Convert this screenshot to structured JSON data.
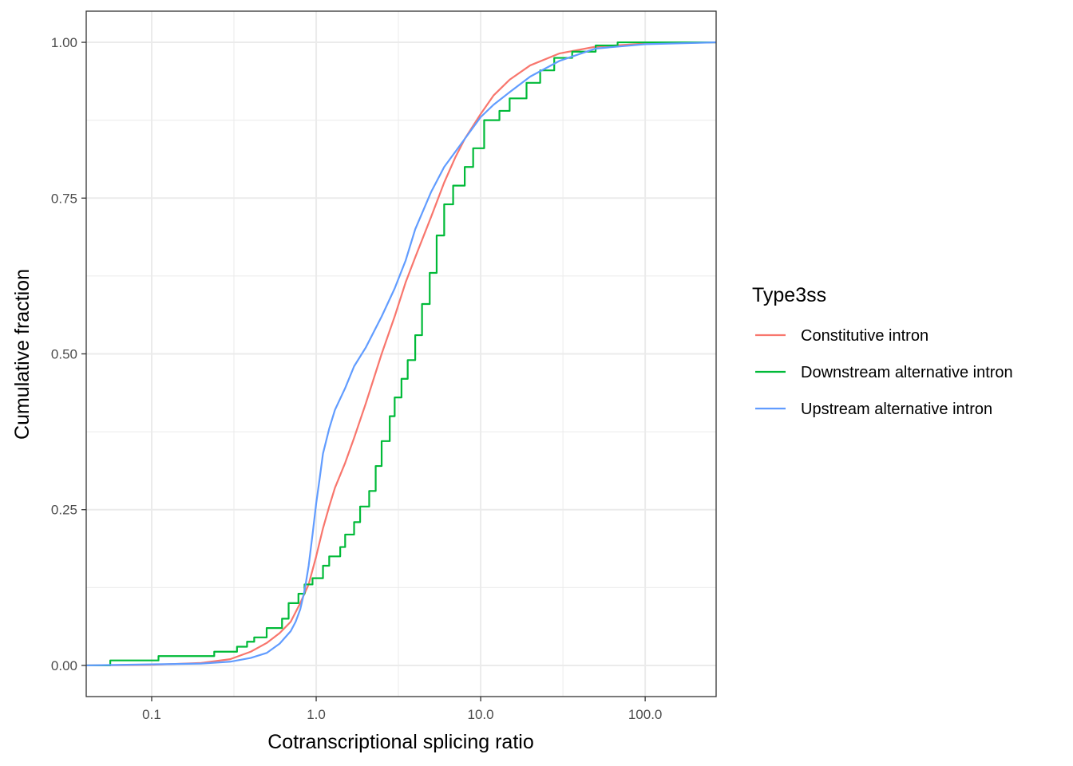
{
  "chart_data": {
    "type": "line",
    "subtype": "ecdf",
    "xlabel": "Cotranscriptional splicing ratio",
    "ylabel": "Cumulative fraction",
    "x_scale": "log10",
    "xlim": [
      0.04,
      270
    ],
    "ylim": [
      -0.05,
      1.05
    ],
    "x_ticks": [
      0.1,
      1,
      10,
      100
    ],
    "x_tick_labels": [
      "0.1",
      "1.0",
      "10.0",
      "100.0"
    ],
    "y_ticks": [
      0,
      0.25,
      0.5,
      0.75,
      1
    ],
    "y_tick_labels": [
      "0.00",
      "0.25",
      "0.50",
      "0.75",
      "1.00"
    ],
    "grid": true,
    "legend": {
      "title": "Type3ss",
      "position": "right"
    },
    "series": [
      {
        "name": "Constitutive intron",
        "color": "#F8766D",
        "step": false,
        "points": [
          [
            0.04,
            0
          ],
          [
            0.1,
            0.001
          ],
          [
            0.2,
            0.004
          ],
          [
            0.3,
            0.01
          ],
          [
            0.4,
            0.022
          ],
          [
            0.5,
            0.036
          ],
          [
            0.6,
            0.052
          ],
          [
            0.7,
            0.07
          ],
          [
            0.8,
            0.1
          ],
          [
            0.9,
            0.13
          ],
          [
            1.0,
            0.175
          ],
          [
            1.1,
            0.22
          ],
          [
            1.2,
            0.255
          ],
          [
            1.3,
            0.285
          ],
          [
            1.5,
            0.325
          ],
          [
            1.7,
            0.365
          ],
          [
            2.0,
            0.42
          ],
          [
            2.5,
            0.5
          ],
          [
            3.0,
            0.56
          ],
          [
            3.5,
            0.615
          ],
          [
            4.0,
            0.655
          ],
          [
            5.0,
            0.72
          ],
          [
            6.0,
            0.775
          ],
          [
            7.0,
            0.815
          ],
          [
            8.0,
            0.845
          ],
          [
            10.0,
            0.885
          ],
          [
            12.0,
            0.915
          ],
          [
            15.0,
            0.94
          ],
          [
            20.0,
            0.963
          ],
          [
            30.0,
            0.982
          ],
          [
            50.0,
            0.993
          ],
          [
            100.0,
            0.998
          ],
          [
            270,
            1.0
          ]
        ]
      },
      {
        "name": "Downstream alternative intron",
        "color": "#00BA38",
        "step": true,
        "points": [
          [
            0.04,
            0
          ],
          [
            0.056,
            0
          ],
          [
            0.056,
            0.008
          ],
          [
            0.11,
            0.008
          ],
          [
            0.11,
            0.015
          ],
          [
            0.24,
            0.015
          ],
          [
            0.24,
            0.022
          ],
          [
            0.33,
            0.022
          ],
          [
            0.33,
            0.03
          ],
          [
            0.38,
            0.03
          ],
          [
            0.38,
            0.038
          ],
          [
            0.42,
            0.038
          ],
          [
            0.42,
            0.045
          ],
          [
            0.5,
            0.045
          ],
          [
            0.5,
            0.06
          ],
          [
            0.62,
            0.06
          ],
          [
            0.62,
            0.075
          ],
          [
            0.68,
            0.075
          ],
          [
            0.68,
            0.1
          ],
          [
            0.78,
            0.1
          ],
          [
            0.78,
            0.115
          ],
          [
            0.85,
            0.115
          ],
          [
            0.85,
            0.13
          ],
          [
            0.95,
            0.13
          ],
          [
            0.95,
            0.14
          ],
          [
            1.1,
            0.14
          ],
          [
            1.1,
            0.16
          ],
          [
            1.2,
            0.16
          ],
          [
            1.2,
            0.175
          ],
          [
            1.4,
            0.175
          ],
          [
            1.4,
            0.19
          ],
          [
            1.5,
            0.19
          ],
          [
            1.5,
            0.21
          ],
          [
            1.7,
            0.21
          ],
          [
            1.7,
            0.23
          ],
          [
            1.85,
            0.23
          ],
          [
            1.85,
            0.255
          ],
          [
            2.1,
            0.255
          ],
          [
            2.1,
            0.28
          ],
          [
            2.3,
            0.28
          ],
          [
            2.3,
            0.32
          ],
          [
            2.5,
            0.32
          ],
          [
            2.5,
            0.36
          ],
          [
            2.8,
            0.36
          ],
          [
            2.8,
            0.4
          ],
          [
            3.0,
            0.4
          ],
          [
            3.0,
            0.43
          ],
          [
            3.3,
            0.43
          ],
          [
            3.3,
            0.46
          ],
          [
            3.6,
            0.46
          ],
          [
            3.6,
            0.49
          ],
          [
            4.0,
            0.49
          ],
          [
            4.0,
            0.53
          ],
          [
            4.4,
            0.53
          ],
          [
            4.4,
            0.58
          ],
          [
            4.9,
            0.58
          ],
          [
            4.9,
            0.63
          ],
          [
            5.4,
            0.63
          ],
          [
            5.4,
            0.69
          ],
          [
            6.0,
            0.69
          ],
          [
            6.0,
            0.74
          ],
          [
            6.8,
            0.74
          ],
          [
            6.8,
            0.77
          ],
          [
            8.0,
            0.77
          ],
          [
            8.0,
            0.8
          ],
          [
            9.0,
            0.8
          ],
          [
            9.0,
            0.83
          ],
          [
            10.5,
            0.83
          ],
          [
            10.5,
            0.875
          ],
          [
            13.0,
            0.875
          ],
          [
            13.0,
            0.89
          ],
          [
            15.0,
            0.89
          ],
          [
            15.0,
            0.91
          ],
          [
            19.0,
            0.91
          ],
          [
            19.0,
            0.935
          ],
          [
            23.0,
            0.935
          ],
          [
            23.0,
            0.955
          ],
          [
            28.0,
            0.955
          ],
          [
            28.0,
            0.975
          ],
          [
            36.0,
            0.975
          ],
          [
            36.0,
            0.985
          ],
          [
            50.0,
            0.985
          ],
          [
            50.0,
            0.995
          ],
          [
            68.0,
            0.995
          ],
          [
            68.0,
            1.0
          ],
          [
            270,
            1.0
          ]
        ]
      },
      {
        "name": "Upstream alternative intron",
        "color": "#619CFF",
        "step": false,
        "points": [
          [
            0.04,
            0
          ],
          [
            0.2,
            0.003
          ],
          [
            0.3,
            0.006
          ],
          [
            0.4,
            0.012
          ],
          [
            0.5,
            0.02
          ],
          [
            0.6,
            0.035
          ],
          [
            0.7,
            0.055
          ],
          [
            0.75,
            0.07
          ],
          [
            0.8,
            0.09
          ],
          [
            0.85,
            0.12
          ],
          [
            0.9,
            0.16
          ],
          [
            0.95,
            0.21
          ],
          [
            1.0,
            0.26
          ],
          [
            1.05,
            0.3
          ],
          [
            1.1,
            0.34
          ],
          [
            1.2,
            0.38
          ],
          [
            1.3,
            0.41
          ],
          [
            1.5,
            0.445
          ],
          [
            1.7,
            0.48
          ],
          [
            2.0,
            0.51
          ],
          [
            2.5,
            0.56
          ],
          [
            3.0,
            0.605
          ],
          [
            3.5,
            0.65
          ],
          [
            4.0,
            0.7
          ],
          [
            5.0,
            0.76
          ],
          [
            6.0,
            0.8
          ],
          [
            8.0,
            0.845
          ],
          [
            10.0,
            0.88
          ],
          [
            12.0,
            0.9
          ],
          [
            15.0,
            0.92
          ],
          [
            20.0,
            0.945
          ],
          [
            30.0,
            0.97
          ],
          [
            50.0,
            0.99
          ],
          [
            100.0,
            0.997
          ],
          [
            270,
            1.0
          ]
        ]
      }
    ]
  }
}
